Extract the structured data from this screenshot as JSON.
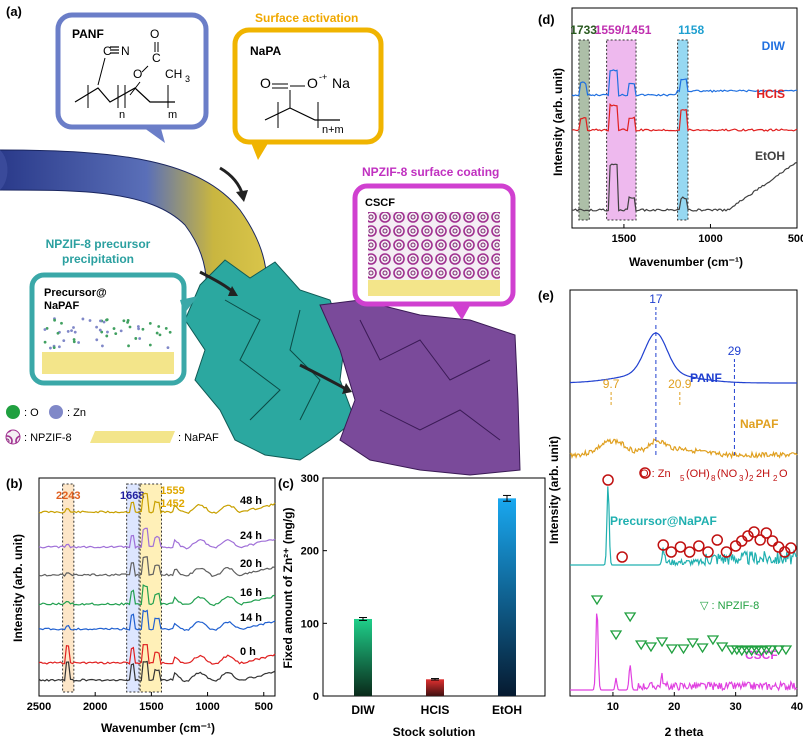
{
  "panels": {
    "a": {
      "label": "(a)",
      "panf": {
        "title": "PANF",
        "n": "n",
        "m": "m",
        "cn": "C",
        "nn": "N",
        "o": "O",
        "c": "C",
        "ch3": "CH",
        "three": "3"
      },
      "napa": {
        "header": "Surface activation",
        "title": "NaPA",
        "o": "O",
        "ominus": "O",
        "na": "Na",
        "sup": "-+",
        "sub": "n+m"
      },
      "precip": {
        "header1": "NPZIF-8 precursor",
        "header2": "precipitation",
        "title1": "Precursor@",
        "title2": "NaPAF"
      },
      "coating": {
        "header": "NPZIF-8 surface coating",
        "title": "CSCF"
      },
      "legend": {
        "o": ": O",
        "zn": ": Zn",
        "npzif": ": NPZIF-8",
        "napaf": ": NaPAF"
      }
    },
    "b": {
      "label": "(b)",
      "markers": [
        "2243",
        "1668",
        "1559",
        "1452"
      ],
      "times": [
        "48 h",
        "24 h",
        "20 h",
        "16 h",
        "14 h",
        "0 h"
      ]
    },
    "c": {
      "label": "(c)"
    },
    "d": {
      "label": "(d)",
      "markers": [
        "1733",
        "1559/1451",
        "1158"
      ]
    },
    "e": {
      "label": "(e)",
      "peak_labels": [
        "17",
        "29",
        "9.7",
        "20.9"
      ],
      "legend_zn": "O : Zn",
      "legend_zn_formula": [
        "5",
        "(OH)",
        "8",
        "(NO",
        "3",
        ")",
        "2",
        "2H",
        "2",
        "O"
      ],
      "legend_npzif": "▽ : NPZIF-8"
    }
  },
  "chart_data": [
    {
      "panel": "b",
      "type": "line",
      "xlabel": "Wavenumber (cm⁻¹)",
      "ylabel": "Intensity (arb. unit)",
      "xlim": [
        2500,
        400
      ],
      "xticks": [
        2500,
        2000,
        1500,
        1000,
        500
      ],
      "series": [
        {
          "name": "48 h",
          "color": "#c8a000"
        },
        {
          "name": "24 h",
          "color": "#a070d8"
        },
        {
          "name": "20 h",
          "color": "#606060"
        },
        {
          "name": "16 h",
          "color": "#22a050"
        },
        {
          "name": "14 h",
          "color": "#2060d0"
        },
        {
          "name": "0 h",
          "color": "#e02020"
        },
        {
          "name": "",
          "color": "#333333"
        }
      ]
    },
    {
      "panel": "c",
      "type": "bar",
      "xlabel": "Stock solution",
      "ylabel": "Fixed amount of Zn²⁺ (mg/g)",
      "categories": [
        "DIW",
        "HCIS",
        "EtOH"
      ],
      "values": [
        106,
        23,
        272
      ],
      "errors": [
        2,
        1,
        4
      ],
      "ylim": [
        0,
        300
      ],
      "yticks": [
        0,
        100,
        200,
        300
      ]
    },
    {
      "panel": "d",
      "type": "line",
      "xlabel": "Wavenumber (cm⁻¹)",
      "ylabel": "Intensity (arb. unit)",
      "xlim": [
        1800,
        500
      ],
      "xticks": [
        1500,
        1000,
        500
      ],
      "series": [
        {
          "name": "DIW",
          "color": "#2070e0"
        },
        {
          "name": "HCIS",
          "color": "#e02020"
        },
        {
          "name": "EtOH",
          "color": "#404040"
        }
      ]
    },
    {
      "panel": "e",
      "type": "line",
      "xlabel": "2 theta",
      "ylabel": "Intensity (arb. unit)",
      "xlim": [
        3,
        40
      ],
      "xticks": [
        10,
        20,
        30,
        40
      ],
      "series": [
        {
          "name": "PANF",
          "color": "#2040d0"
        },
        {
          "name": "NaPAF",
          "color": "#e0a020"
        },
        {
          "name": "Precursor@NaPAF",
          "color": "#20b0b0"
        },
        {
          "name": "CSCF",
          "color": "#e040e0"
        }
      ]
    }
  ]
}
